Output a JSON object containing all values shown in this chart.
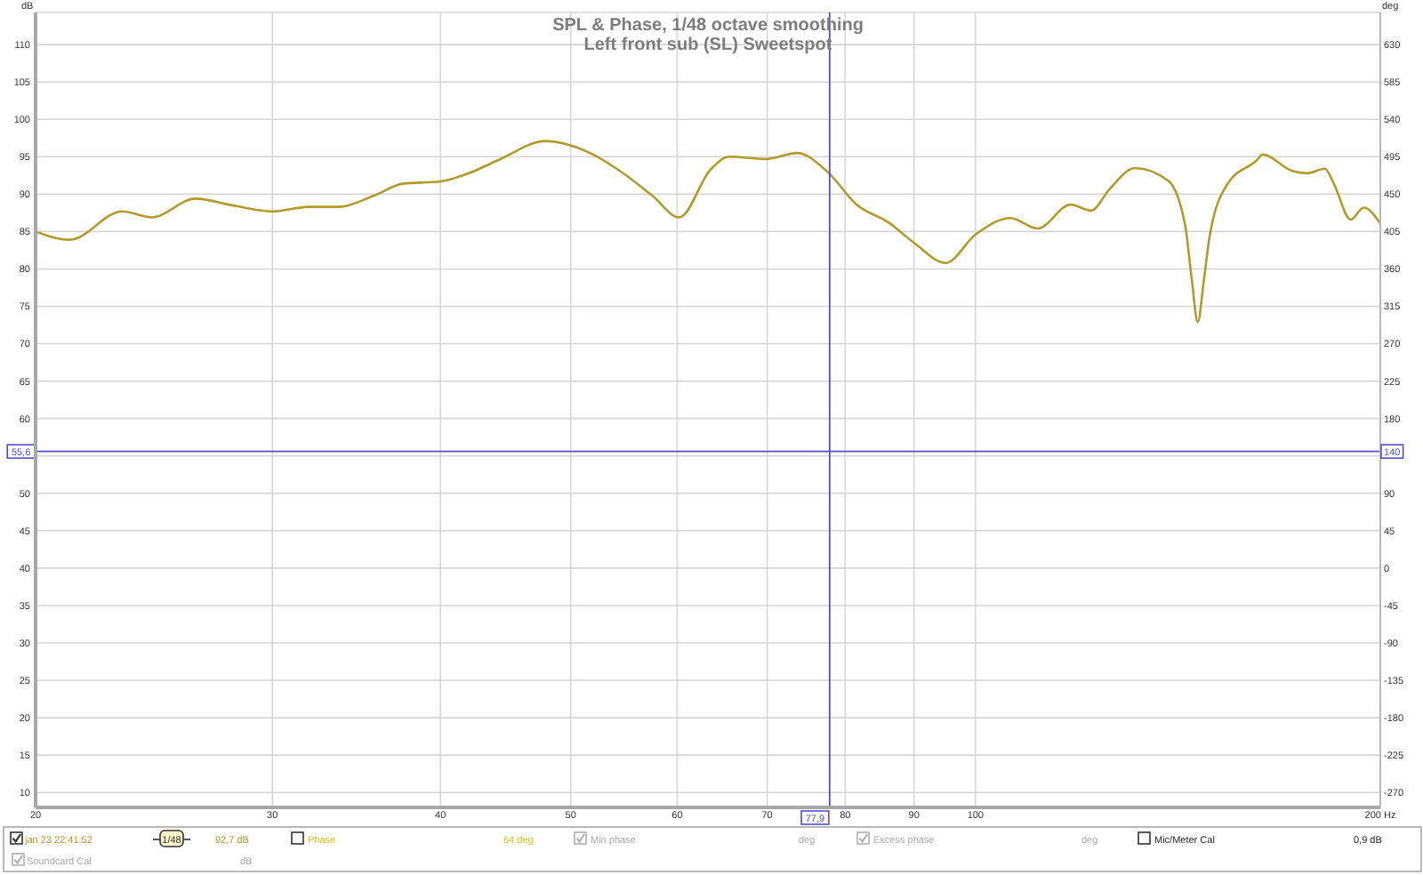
{
  "chart_data": {
    "type": "line",
    "title": "SPL & Phase, 1/48 octave smoothing",
    "subtitle": "Left front sub (SL) Sweetspot",
    "ylabel": "dB",
    "y2label": "deg",
    "x": [
      20,
      21.2,
      23.2,
      24.4,
      26.3,
      28.2,
      30,
      31.9,
      33.6,
      35.7,
      37.5,
      40,
      42,
      44.1,
      47.9,
      51.4,
      54.1,
      57.5,
      60.2,
      63.6,
      65.6,
      69.8,
      73.7,
      77.6,
      81.6,
      86.2,
      90,
      95,
      100,
      106.2,
      111.2,
      117.7,
      121.9,
      125.7,
      131.4,
      139.1,
      143.2,
      144.8,
      146.3,
      147.9,
      149.3,
      154,
      161.8,
      163.5,
      172,
      176.5,
      181.9,
      184.7,
      190.1,
      194.4,
      200
    ],
    "series": [
      {
        "name": "jan 23 22:41:52",
        "color": "#b39a2c",
        "values": [
          85.0,
          83.9,
          87.7,
          86.9,
          89.4,
          88.4,
          87.7,
          88.3,
          88.3,
          89.8,
          91.4,
          91.7,
          92.8,
          94.5,
          97.1,
          95.7,
          93.4,
          89.8,
          86.9,
          93.4,
          95.0,
          94.7,
          95.5,
          93.0,
          88.6,
          86.2,
          83.5,
          80.8,
          84.6,
          86.8,
          85.4,
          88.6,
          87.8,
          90.6,
          93.5,
          91.8,
          85.8,
          78.7,
          72.9,
          78.7,
          84.3,
          91.4,
          94.5,
          95.3,
          93.1,
          92.8,
          93.4,
          91.4,
          86.6,
          88.2,
          86.1
        ]
      }
    ],
    "log": "x",
    "xlim": [
      20,
      200
    ],
    "xticks": [
      20,
      30,
      40,
      50,
      60,
      70,
      80,
      90,
      100,
      {
        "value": 200,
        "label": "200 Hz"
      }
    ],
    "ylim": [
      8,
      114.3
    ],
    "yticks": [
      10,
      15,
      20,
      25,
      30,
      35,
      40,
      45,
      50,
      {
        "value": 55,
        "label": null
      },
      60,
      65,
      70,
      75,
      80,
      85,
      90,
      95,
      100,
      105,
      110
    ],
    "y2lim": [
      -288,
      668.7
    ],
    "y2ticks": [
      -270,
      -225,
      -180,
      -135,
      -90,
      -45,
      0,
      45,
      90,
      180,
      225,
      270,
      315,
      360,
      405,
      450,
      495,
      540,
      585,
      630
    ],
    "grid": true,
    "legend": "bottom",
    "ref_lines": [
      {
        "axis": "y",
        "value": 55.6,
        "label": "55,6",
        "color": "#5050c8"
      },
      {
        "axis": "x",
        "value": 77.9,
        "label": "77,9",
        "color": "#5050c8"
      }
    ],
    "annotations": [
      "1/48",
      "92,7 dB",
      "Phase",
      "64 deg",
      "Min phase",
      "deg",
      "Excess phase",
      "deg",
      "Mic/Meter Cal",
      "0,9 dB",
      "Soundcard Cal",
      "dB",
      {
        "text": "140",
        "x": 200,
        "y": 55.6
      }
    ]
  }
}
